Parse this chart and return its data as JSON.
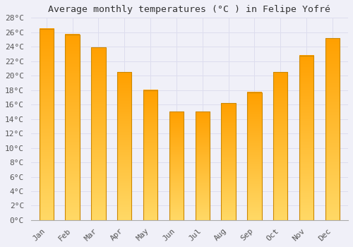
{
  "title": "Average monthly temperatures (°C ) in Felipe Yofré",
  "months": [
    "Jan",
    "Feb",
    "Mar",
    "Apr",
    "May",
    "Jun",
    "Jul",
    "Aug",
    "Sep",
    "Oct",
    "Nov",
    "Dec"
  ],
  "values": [
    26.5,
    25.7,
    23.9,
    20.5,
    18.0,
    15.0,
    15.0,
    16.2,
    17.7,
    20.5,
    22.8,
    25.2
  ],
  "bar_color_top": "#FFD966",
  "bar_color_bottom": "#FFA000",
  "bar_edge_color": "#CC8800",
  "background_color": "#F0F0F8",
  "plot_bg_color": "#F0F0F8",
  "grid_color": "#DDDDEE",
  "ylim": [
    0,
    28
  ],
  "ytick_step": 2,
  "title_fontsize": 9.5,
  "tick_fontsize": 8,
  "bar_width": 0.55
}
